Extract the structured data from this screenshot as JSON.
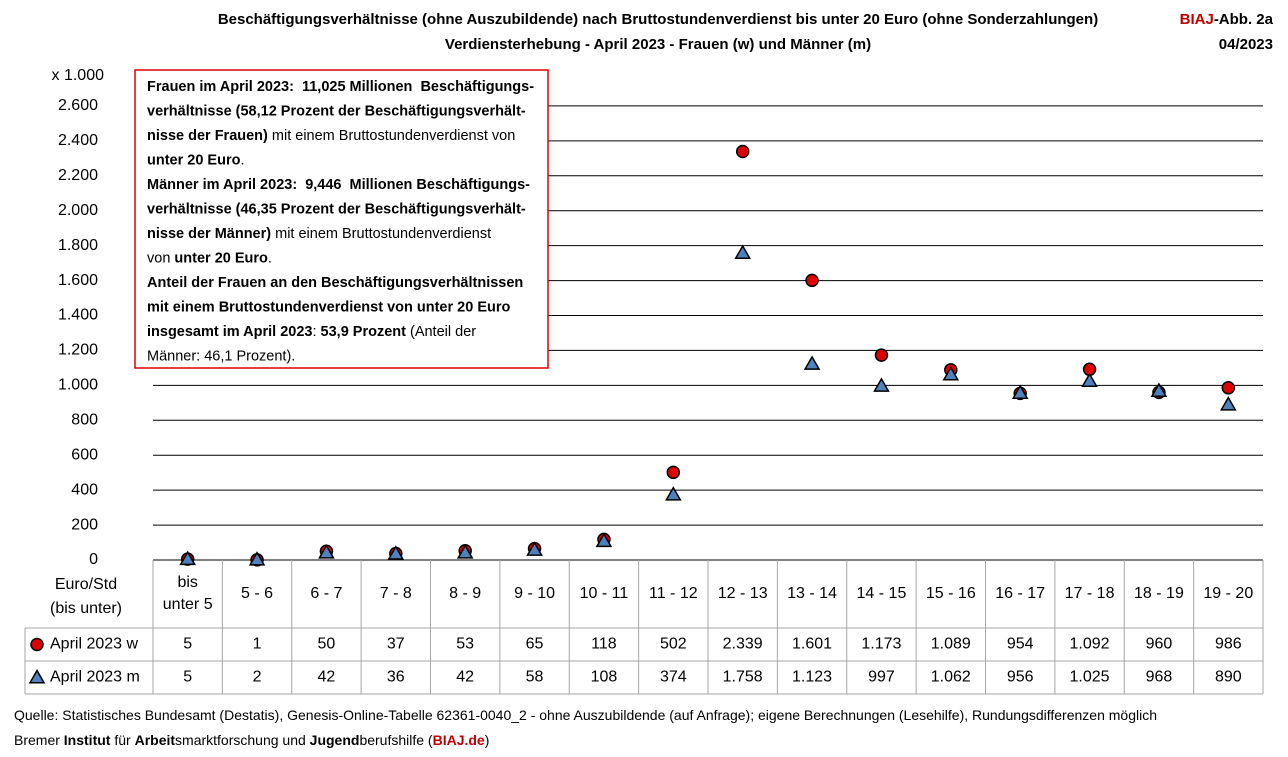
{
  "chart_data": {
    "type": "scatter",
    "title": "Beschäftigungsverhältnisse (ohne Auszubildende) nach Bruttostundenverdienst bis unter 20 Euro (ohne Sonderzahlungen)",
    "subtitle": "Verdiensterhebung - April 2023 - Frauen (w) und Männer (m)",
    "figure_label": [
      "BIAJ",
      "-Abb. 2a"
    ],
    "figure_date": "04/2023",
    "y_unit": "x 1.000",
    "table_header": [
      "Euro/Std",
      "(bis unter)"
    ],
    "categories": [
      "bis unter 5",
      "5 - 6",
      "6 - 7",
      "7 - 8",
      "8 - 9",
      "9 - 10",
      "10 - 11",
      "11 - 12",
      "12 - 13",
      "13 - 14",
      "14 - 15",
      "15 - 16",
      "16 - 17",
      "17 - 18",
      "18 - 19",
      "19 - 20"
    ],
    "series": [
      {
        "name": "April 2023 w",
        "color": "#e00000",
        "marker": "circle",
        "values": [
          5,
          1,
          50,
          37,
          53,
          65,
          118,
          502,
          2339,
          1601,
          1173,
          1089,
          954,
          1092,
          960,
          986
        ],
        "value_labels": [
          "5",
          "1",
          "50",
          "37",
          "53",
          "65",
          "118",
          "502",
          "2.339",
          "1.601",
          "1.173",
          "1.089",
          "954",
          "1.092",
          "960",
          "986"
        ]
      },
      {
        "name": "April 2023 m",
        "color": "#4f81bd",
        "marker": "triangle",
        "values": [
          5,
          2,
          42,
          36,
          42,
          58,
          108,
          374,
          1758,
          1123,
          997,
          1062,
          956,
          1025,
          968,
          890
        ],
        "value_labels": [
          "5",
          "2",
          "42",
          "36",
          "42",
          "58",
          "108",
          "374",
          "1.758",
          "1.123",
          "997",
          "1.062",
          "956",
          "1.025",
          "968",
          "890"
        ]
      }
    ],
    "ylim": [
      0,
      2800
    ],
    "yticks": [
      0,
      200,
      400,
      600,
      800,
      {
        "value": 1000,
        "label": "1.000"
      },
      {
        "value": 1200,
        "label": "1.200"
      },
      {
        "value": 1400,
        "label": "1.400"
      },
      {
        "value": 1600,
        "label": "1.600"
      },
      {
        "value": 1800,
        "label": "1.800"
      },
      {
        "value": 2000,
        "label": "2.000"
      },
      {
        "value": 2200,
        "label": "2.200"
      },
      {
        "value": 2400,
        "label": "2.400"
      },
      {
        "value": 2600,
        "label": "2.600"
      }
    ],
    "grid": true,
    "annotation": [
      [
        {
          "text": "Frauen im April 2023:  11,025 Millionen  Beschäftigungs-",
          "bold": true
        }
      ],
      [
        {
          "text": "verhältnisse (58,12 Prozent der Beschäftigungsverhält-",
          "bold": true
        }
      ],
      [
        {
          "text": "nisse der Frauen)",
          "bold": true
        },
        {
          "text": " mit einem Bruttostundenverdienst von",
          "bold": false
        }
      ],
      [
        {
          "text": "unter 20 Euro",
          "bold": true
        },
        {
          "text": ".",
          "bold": false
        }
      ],
      [
        {
          "text": "Männer im April 2023:  9,446  Millionen Beschäftigungs-",
          "bold": true
        }
      ],
      [
        {
          "text": "verhältnisse (46,35 Prozent der Beschäftigungsverhält-",
          "bold": true
        }
      ],
      [
        {
          "text": "nisse der Männer)",
          "bold": true
        },
        {
          "text": " mit einem Bruttostundenverdienst",
          "bold": false
        }
      ],
      [
        {
          "text": "von ",
          "bold": false
        },
        {
          "text": "unter 20 Euro",
          "bold": true
        },
        {
          "text": ".",
          "bold": false
        }
      ],
      [
        {
          "text": "Anteil der Frauen an den Beschäftigungsverhältnissen",
          "bold": true
        }
      ],
      [
        {
          "text": "mit einem Bruttostundenverdienst von unter 20 Euro",
          "bold": true
        }
      ],
      [
        {
          "text": "insgesamt im April 2023",
          "bold": true
        },
        {
          "text": ": ",
          "bold": false
        },
        {
          "text": "53,9 Prozent",
          "bold": true
        },
        {
          "text": " (Anteil der",
          "bold": false
        }
      ],
      [
        {
          "text": "Männer: 46,1 Prozent).",
          "bold": false
        }
      ]
    ],
    "footer": [
      [
        {
          "text": "Quelle: Statistisches Bundesamt (Destatis), Genesis-Online-Tabelle 62361-0040_2 - ohne Auszubildende (auf Anfrage); eigene Berechnungen (Lesehilfe), Rundungsdifferenzen möglich",
          "bold": false
        }
      ],
      [
        {
          "text": "Bremer ",
          "bold": false
        },
        {
          "text": "Institut",
          "bold": true
        },
        {
          "text": " für ",
          "bold": false
        },
        {
          "text": "Arbeit",
          "bold": true
        },
        {
          "text": "smarktforschung und ",
          "bold": false
        },
        {
          "text": "Jugend",
          "bold": true
        },
        {
          "text": "berufshilfe (",
          "bold": false
        },
        {
          "text": "BIAJ.de",
          "bold": true,
          "color": "#c00000"
        },
        {
          "text": ")",
          "bold": false
        }
      ]
    ]
  }
}
